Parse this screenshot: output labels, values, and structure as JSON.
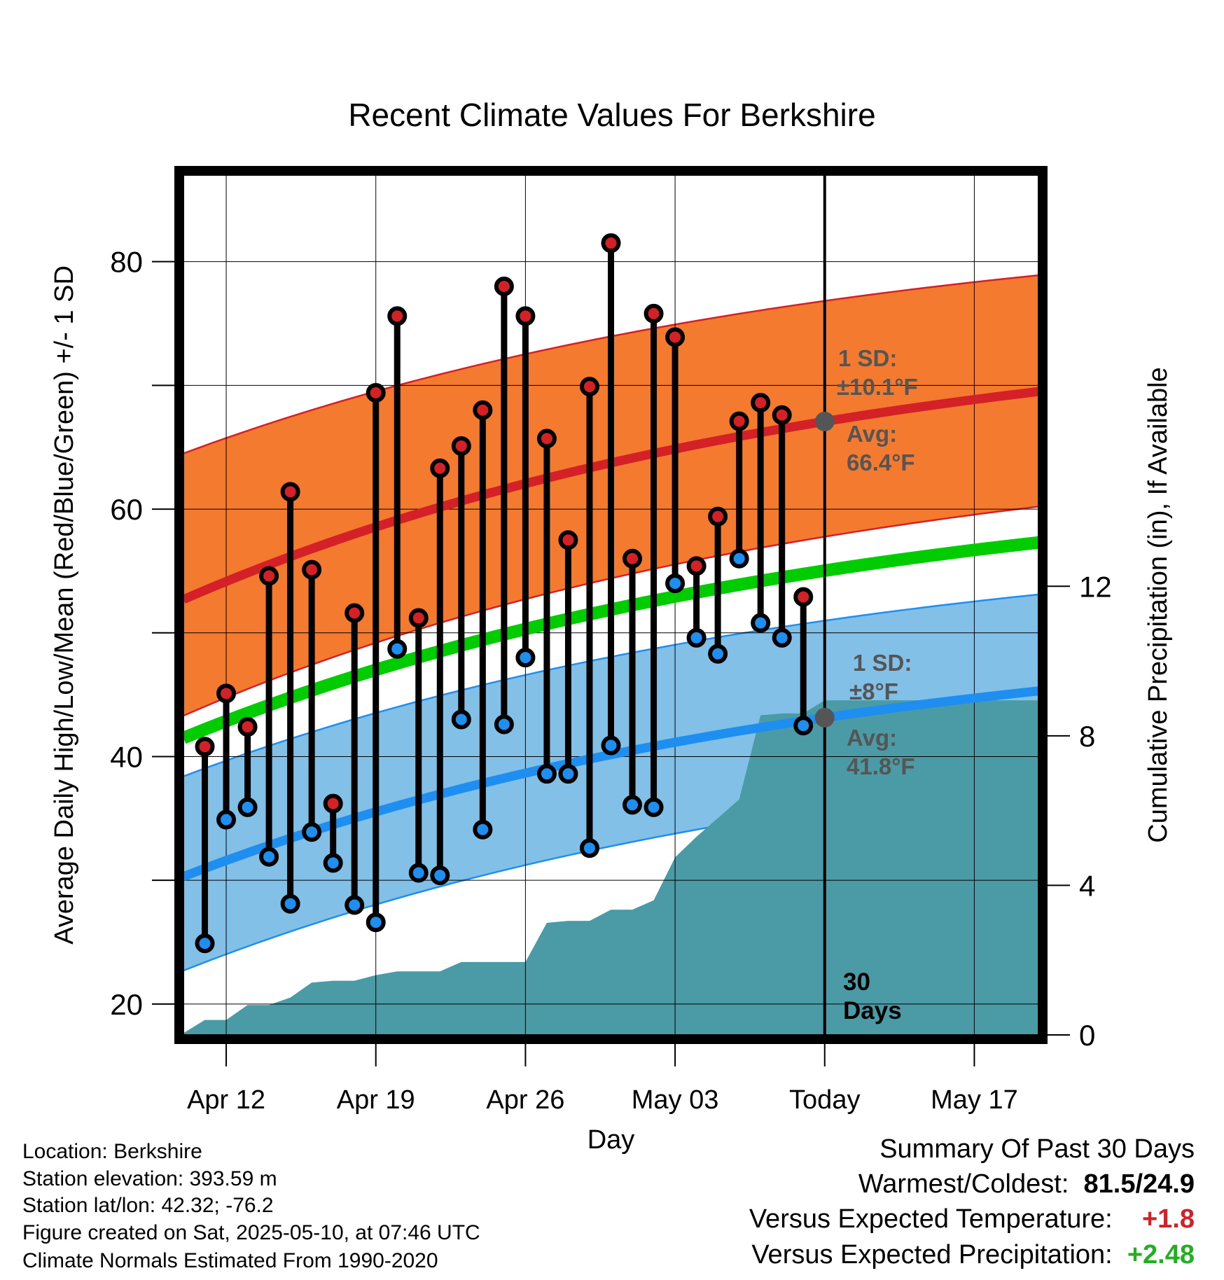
{
  "chart_data": {
    "type": "line",
    "title": "Recent Climate Values For Berkshire",
    "xlabel": "Day",
    "ylabel": "Average Daily High/Low/Mean (Red/Blue/Green) +/- 1 SD",
    "ylabel_right": "Cumulative Precipitation (in), If Available",
    "x_start": "2025-04-10",
    "x_end": "2025-05-20",
    "xlim": [
      0,
      40
    ],
    "ylim": [
      17.5,
      87
    ],
    "ylim_right": [
      0,
      23
    ],
    "y_ticks": [
      20,
      40,
      60,
      80
    ],
    "y_ticks_right": [
      0,
      4,
      8,
      12
    ],
    "x_ticks": [
      {
        "date": "2025-04-12",
        "label": "Apr 12"
      },
      {
        "date": "2025-04-19",
        "label": "Apr 19"
      },
      {
        "date": "2025-04-26",
        "label": "Apr 26"
      },
      {
        "date": "2025-05-03",
        "label": "May 03"
      },
      {
        "date": "2025-05-10",
        "label": "Today"
      },
      {
        "date": "2025-05-17",
        "label": "May 17"
      }
    ],
    "today": "2025-05-10",
    "today_label": "30\nDays",
    "normals": {
      "high_mean": [
        52.7,
        69.5
      ],
      "high_sd_upper": [
        64.5,
        78.9
      ],
      "high_sd_lower": [
        43.3,
        60.2
      ],
      "mean": [
        41.5,
        57.3
      ],
      "low_mean": [
        30.3,
        45.3
      ],
      "low_sd_upper": [
        38.4,
        53.1
      ],
      "low_sd_lower": [
        22.7,
        38.0
      ]
    },
    "series": [
      {
        "name": "High",
        "color": "#d42027",
        "x": [
          "2025-04-11",
          "2025-04-12",
          "2025-04-13",
          "2025-04-14",
          "2025-04-15",
          "2025-04-16",
          "2025-04-17",
          "2025-04-18",
          "2025-04-19",
          "2025-04-20",
          "2025-04-21",
          "2025-04-22",
          "2025-04-23",
          "2025-04-24",
          "2025-04-25",
          "2025-04-26",
          "2025-04-27",
          "2025-04-28",
          "2025-04-29",
          "2025-04-30",
          "2025-05-01",
          "2025-05-02",
          "2025-05-03",
          "2025-05-04",
          "2025-05-05",
          "2025-05-06",
          "2025-05-07",
          "2025-05-08",
          "2025-05-09"
        ],
        "values": [
          40.8,
          45.1,
          42.4,
          54.6,
          61.4,
          55.1,
          36.2,
          51.6,
          69.4,
          75.6,
          51.2,
          63.3,
          65.1,
          68.0,
          78.0,
          75.6,
          65.7,
          57.5,
          69.9,
          81.5,
          56.0,
          75.8,
          73.9,
          55.4,
          59.4,
          67.1,
          68.6,
          67.6,
          52.9
        ]
      },
      {
        "name": "Low",
        "color": "#1e8ff0",
        "x": [
          "2025-04-11",
          "2025-04-12",
          "2025-04-13",
          "2025-04-14",
          "2025-04-15",
          "2025-04-16",
          "2025-04-17",
          "2025-04-18",
          "2025-04-19",
          "2025-04-20",
          "2025-04-21",
          "2025-04-22",
          "2025-04-23",
          "2025-04-24",
          "2025-04-25",
          "2025-04-26",
          "2025-04-27",
          "2025-04-28",
          "2025-04-29",
          "2025-04-30",
          "2025-05-01",
          "2025-05-02",
          "2025-05-03",
          "2025-05-04",
          "2025-05-05",
          "2025-05-06",
          "2025-05-07",
          "2025-05-08",
          "2025-05-09"
        ],
        "values": [
          24.9,
          34.9,
          35.9,
          31.9,
          28.1,
          33.9,
          31.4,
          28.0,
          26.6,
          48.7,
          30.6,
          30.4,
          43.0,
          34.1,
          42.6,
          48.0,
          38.6,
          38.6,
          32.6,
          40.9,
          36.1,
          35.9,
          54.0,
          49.6,
          48.3,
          56.0,
          50.8,
          49.6,
          42.5
        ]
      },
      {
        "name": "Cumulative Precipitation",
        "color": "#4a9ba6",
        "x": [
          "2025-04-10",
          "2025-04-11",
          "2025-04-12",
          "2025-04-13",
          "2025-04-14",
          "2025-04-15",
          "2025-04-16",
          "2025-04-17",
          "2025-04-18",
          "2025-04-19",
          "2025-04-20",
          "2025-04-21",
          "2025-04-22",
          "2025-04-23",
          "2025-04-24",
          "2025-04-25",
          "2025-04-26",
          "2025-04-27",
          "2025-04-28",
          "2025-04-29",
          "2025-04-30",
          "2025-05-01",
          "2025-05-02",
          "2025-05-03",
          "2025-05-04",
          "2025-05-05",
          "2025-05-06",
          "2025-05-07",
          "2025-05-08",
          "2025-05-09",
          "2025-05-10",
          "2025-05-20"
        ],
        "values": [
          0.05,
          0.4,
          0.4,
          0.8,
          0.8,
          1.0,
          1.4,
          1.45,
          1.45,
          1.6,
          1.7,
          1.7,
          1.7,
          1.95,
          1.95,
          1.95,
          1.95,
          3.0,
          3.05,
          3.05,
          3.35,
          3.35,
          3.6,
          4.75,
          5.3,
          5.8,
          6.3,
          8.55,
          8.6,
          8.6,
          8.95,
          8.95
        ]
      }
    ],
    "annotations": {
      "high_sd_title": "1 SD:",
      "high_sd_value": "±10.1°F",
      "high_avg_title": "Avg:",
      "high_avg_value": "66.4°F",
      "low_sd_title": "1 SD:",
      "low_sd_value": "±8°F",
      "low_avg_title": "Avg:",
      "low_avg_value": "41.8°F"
    },
    "colors": {
      "high_band": "#f47a2f",
      "high_line": "#d42027",
      "low_band": "#82c0e8",
      "low_line": "#1e8ff0",
      "mean_line": "#00cc00",
      "precip": "#4a9ba6",
      "annotation": "#555555"
    },
    "grid": true,
    "legend": "none"
  },
  "meta": {
    "location": "Location: Berkshire",
    "elevation": "Station elevation: 393.59 m",
    "latlon": "Station lat/lon: 42.32; -76.2",
    "created": "Figure created on Sat, 2025-05-10, at 07:46 UTC",
    "normals": "Climate Normals Estimated From 1990-2020"
  },
  "summary": {
    "title": "Summary Of Past 30 Days",
    "warmest_label": "Warmest/Coldest:",
    "warmest_value": "81.5/24.9",
    "temp_label": "Versus Expected Temperature:",
    "temp_value": "+1.8",
    "temp_color": "#d42027",
    "precip_label": "Versus Expected Precipitation:",
    "precip_value": "+2.48",
    "precip_color": "#22b022"
  }
}
